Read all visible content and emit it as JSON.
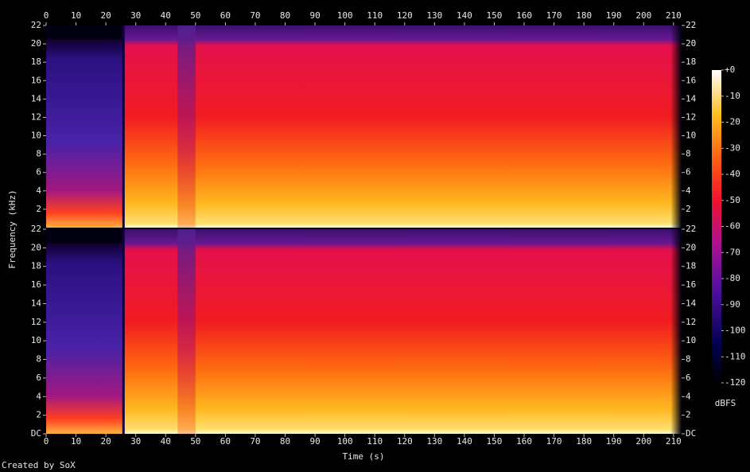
{
  "chart_data": {
    "type": "spectrogram",
    "xlabel": "Time (s)",
    "ylabel": "Frequency (kHz)",
    "xlim": [
      0,
      212.7
    ],
    "xticks": [
      0,
      10,
      20,
      30,
      40,
      50,
      60,
      70,
      80,
      90,
      100,
      110,
      120,
      130,
      140,
      150,
      160,
      170,
      180,
      190,
      200,
      210
    ],
    "ylim": [
      0,
      22
    ],
    "yticks": [
      {
        "value": 0,
        "label": "DC"
      },
      2,
      4,
      6,
      8,
      10,
      12,
      14,
      16,
      18,
      20,
      22
    ],
    "colorbar": {
      "label": "dBFS",
      "lim": [
        -120,
        0
      ],
      "ticks": [
        {
          "value": 0,
          "label": "+0"
        },
        -10,
        -20,
        -30,
        -40,
        -50,
        -60,
        -70,
        -80,
        -90,
        -100,
        -110,
        -120
      ]
    },
    "credit": "Created by SoX"
  }
}
